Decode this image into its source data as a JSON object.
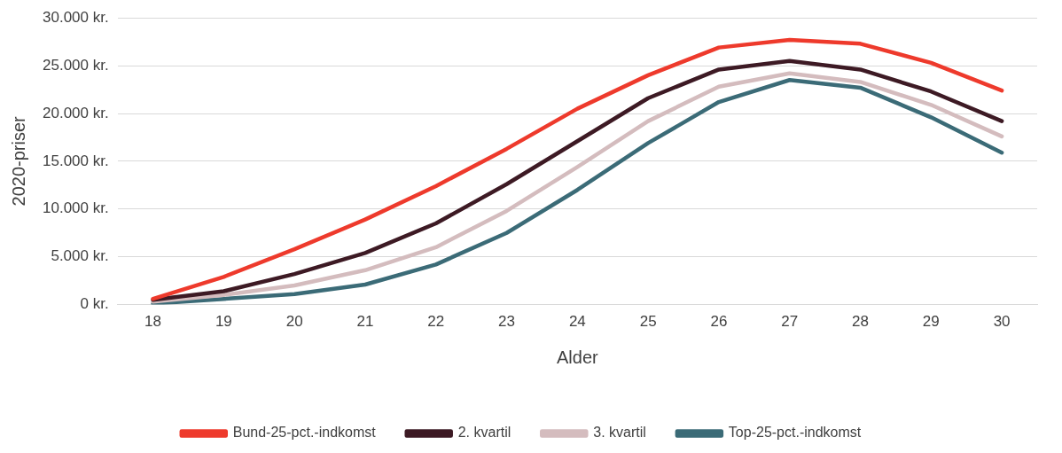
{
  "chart_data": {
    "type": "line",
    "xlabel": "Alder",
    "ylabel": "2020-priser",
    "categories": [
      "18",
      "19",
      "20",
      "21",
      "22",
      "23",
      "24",
      "25",
      "26",
      "27",
      "28",
      "29",
      "30"
    ],
    "series": [
      {
        "name": "Bund-25-pct.-indkomst",
        "color": "#ee3a2c",
        "values": [
          600,
          2900,
          5800,
          8900,
          12400,
          16300,
          20500,
          24000,
          26900,
          27700,
          27300,
          25300,
          22400
        ]
      },
      {
        "name": "2. kvartil",
        "color": "#3d1a24",
        "values": [
          500,
          1400,
          3200,
          5400,
          8500,
          12600,
          17100,
          21600,
          24600,
          25500,
          24600,
          22300,
          19200
        ]
      },
      {
        "name": "3. kvartil",
        "color": "#d4bcbe",
        "values": [
          300,
          1000,
          2000,
          3600,
          6000,
          9800,
          14400,
          19200,
          22800,
          24200,
          23300,
          20900,
          17600
        ]
      },
      {
        "name": "Top-25-pct.-indkomst",
        "color": "#3b6b77",
        "values": [
          100,
          600,
          1100,
          2100,
          4200,
          7500,
          12000,
          16900,
          21200,
          23500,
          22700,
          19600,
          15900
        ]
      }
    ],
    "ylim": [
      0,
      30000
    ],
    "yticks": [
      {
        "value": 0,
        "label": "0 kr."
      },
      {
        "value": 5000,
        "label": "5.000 kr."
      },
      {
        "value": 10000,
        "label": "10.000 kr."
      },
      {
        "value": 15000,
        "label": "15.000 kr."
      },
      {
        "value": 20000,
        "label": "20.000 kr."
      },
      {
        "value": 25000,
        "label": "25.000 kr."
      },
      {
        "value": 30000,
        "label": "30.000 kr."
      }
    ],
    "grid": "y",
    "legend": "bottom",
    "marker": "none",
    "line_style": "solid"
  }
}
